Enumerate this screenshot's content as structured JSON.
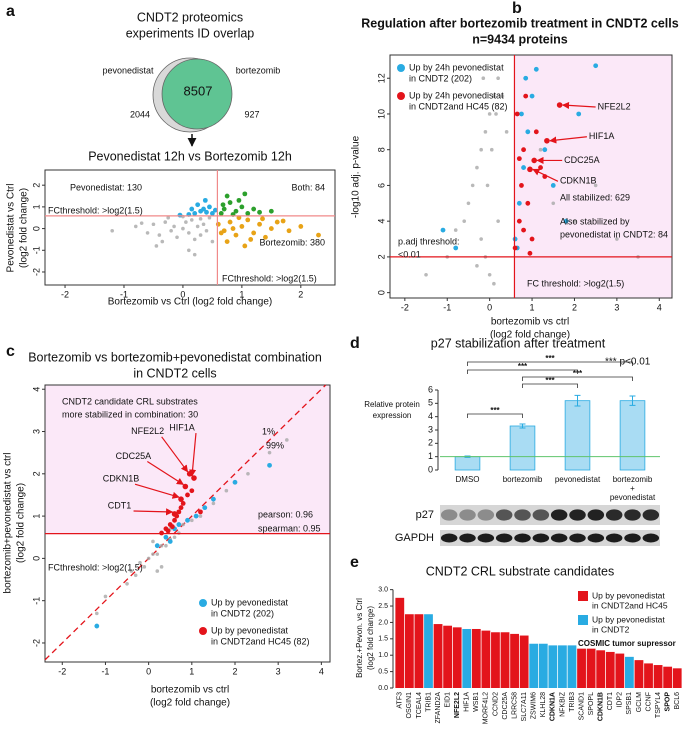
{
  "chart_data": [
    {
      "type": "venn",
      "panel": "a",
      "title": [
        "CNDT2 proteomics",
        "experiments ID overlap"
      ],
      "sets": [
        {
          "name": "pevonedistat",
          "only": 2044,
          "color": "#d9d9d9"
        },
        {
          "name": "bortezomib",
          "only": 927,
          "color": "#5fc493"
        }
      ],
      "overlap": 8507
    },
    {
      "type": "scatter",
      "title": "Pevonedistat 12h vs Bortezomib 12h",
      "x_label": "Bortezomib vs Ctrl (log2 fold change)",
      "y_label": [
        "Pevonedistat vs Ctrl",
        "(log2 fold change)"
      ],
      "xlim": [
        -2.34,
        2.58
      ],
      "ylim": [
        -2.6,
        2.7
      ],
      "xticks": [
        -2,
        -1,
        0,
        1,
        2
      ],
      "yticks": [
        -2,
        -1,
        0,
        1,
        2
      ],
      "x_threshold": 0.585,
      "y_threshold": 0.585,
      "threshold_color": "#f08a8a",
      "annotations": [
        {
          "text": "Pevonedistat: 130",
          "color": "#29abe2"
        },
        {
          "text": "Both: 84",
          "color": "#2ca02c"
        },
        {
          "text": "Bortezomib: 380",
          "color": "#e8a317"
        },
        {
          "text": "FCthreshold: >log2(1.5)",
          "color": "#e3141b"
        },
        {
          "text": "FCthreshold: >log2(1.5)",
          "color": "#e3141b"
        }
      ],
      "series": [
        {
          "color": "#a8a8a8",
          "x": [
            -1.2,
            -0.8,
            -0.6,
            -0.5,
            -0.4,
            -0.3,
            -0.2,
            -0.15,
            -0.1,
            0,
            0.05,
            0.1,
            0.15,
            0.2,
            0.25,
            0.3,
            0.35,
            0.4,
            0.45,
            0.5,
            -0.45,
            -0.25,
            0.1,
            0.3,
            -0.7,
            0.2,
            0,
            -0.35
          ],
          "y": [
            -0.1,
            0.1,
            -0.2,
            0.2,
            -0.3,
            0.3,
            -0.1,
            0.1,
            -0.4,
            0,
            0.3,
            -0.2,
            0.4,
            -0.5,
            0.1,
            -0.3,
            0.2,
            -0.1,
            0.5,
            -0.6,
            -0.8,
            0.5,
            -1.0,
            0.45,
            0.25,
            -1.2,
            0.55,
            -0.6
          ]
        },
        {
          "color": "#29abe2",
          "x": [
            0.1,
            0.2,
            0.3,
            0.35,
            0.4,
            0.45,
            0.5,
            0.25,
            0.15,
            -0.05,
            0.55,
            0.38
          ],
          "y": [
            0.65,
            0.7,
            0.8,
            0.9,
            0.75,
            1.0,
            0.7,
            1.1,
            0.9,
            0.62,
            0.85,
            1.3
          ]
        },
        {
          "color": "#2ca02c",
          "x": [
            0.65,
            0.7,
            0.8,
            0.9,
            1.0,
            1.1,
            1.2,
            0.75,
            0.95,
            1.3,
            0.68,
            1.05,
            1.5,
            0.85
          ],
          "y": [
            0.7,
            0.9,
            1.2,
            0.8,
            1.0,
            0.7,
            0.9,
            1.5,
            1.3,
            0.75,
            1.1,
            1.6,
            0.8,
            0.65
          ]
        },
        {
          "color": "#e8a317",
          "x": [
            0.6,
            0.7,
            0.8,
            0.9,
            1.0,
            1.1,
            1.2,
            1.3,
            1.4,
            1.5,
            1.6,
            1.8,
            2.0,
            2.3,
            0.75,
            0.95,
            1.15,
            1.35,
            0.65,
            0.85,
            1.05,
            1.7
          ],
          "y": [
            0.2,
            -0.1,
            0.3,
            -0.3,
            0.1,
            0.4,
            -0.2,
            0.2,
            -0.4,
            0.0,
            0.3,
            -0.1,
            0.1,
            -0.3,
            -0.6,
            0.5,
            -0.5,
            0.45,
            -0.2,
            0.0,
            -0.8,
            0.35
          ]
        }
      ]
    },
    {
      "type": "scatter",
      "panel": "b",
      "title": "Regulation after bortezomib treatment in CNDT2 cells",
      "subtitle": "n=9434 proteins",
      "x_label": [
        "bortezomib vs ctrl",
        "(log2 fold change)"
      ],
      "y_label": [
        "-log10 adj. p-value"
      ],
      "xlim": [
        -2.35,
        4.3
      ],
      "ylim": [
        -0.3,
        13.3
      ],
      "xticks": [
        -2,
        -1,
        0,
        1,
        2,
        3,
        4
      ],
      "yticks": [
        0,
        2,
        4,
        6,
        8,
        10,
        12
      ],
      "x_threshold": 0.585,
      "y_threshold": 2,
      "threshold_color": "#e3141b",
      "shade": {
        "region": "right",
        "color": "#fbe8f8"
      },
      "annotations": [
        {
          "text": "All stabilized: 629",
          "color": "#111"
        },
        {
          "text": [
            "Also stabilized by",
            "pevonedistat in CNDT2: 84"
          ],
          "color": "#111"
        },
        {
          "text": [
            "p.adj threshold:",
            "<0.01"
          ],
          "color": "#e3141b"
        },
        {
          "text": "FC threshold: >log2(1.5)",
          "color": "#e3141b"
        }
      ],
      "legend": [
        {
          "label": [
            "Up by 24h pevonedistat",
            "in CNDT2 (202)"
          ],
          "color": "#29abe2"
        },
        {
          "label": [
            "Up by 24h pevonedistat",
            "in CNDT2and HC45 (82)"
          ],
          "color": "#e3141b"
        }
      ],
      "labeled_points": [
        {
          "label": "NFE2L2",
          "x": 1.65,
          "y": 10.5
        },
        {
          "label": "HIF1A",
          "x": 1.35,
          "y": 8.5
        },
        {
          "label": "CDC25A",
          "x": 1.05,
          "y": 7.4
        },
        {
          "label": "CDKN1B",
          "x": 0.95,
          "y": 6.9
        }
      ],
      "series": [
        {
          "color": "#a8a8a8",
          "x": [
            -1.5,
            -1.0,
            -0.8,
            -0.6,
            -0.5,
            -0.4,
            -0.3,
            -0.2,
            -0.1,
            0,
            0.1,
            0.2,
            0.3,
            0.4,
            -0.3,
            -0.1,
            0,
            0.1,
            -0.2,
            0.2,
            -0.05,
            0.05,
            0.15,
            -0.15,
            1.5,
            2.0,
            2.5,
            3.0,
            1.2,
            3.5
          ],
          "y": [
            1.0,
            2.0,
            3.5,
            4,
            5,
            6,
            7,
            8,
            9,
            10,
            11,
            12,
            11,
            9,
            1.5,
            2,
            1,
            0.5,
            3,
            4,
            6,
            8,
            10,
            12,
            5,
            4,
            6,
            3,
            8,
            2
          ]
        },
        {
          "color": "#29abe2",
          "x": [
            0.6,
            0.7,
            0.8,
            0.9,
            1.0,
            1.1,
            1.3,
            1.5,
            1.8,
            2.1,
            0.65,
            0.75,
            0.85,
            2.5,
            -0.8,
            -1.1
          ],
          "y": [
            3,
            5,
            7,
            9,
            11,
            12.5,
            8,
            6,
            4,
            10,
            2.5,
            10,
            12,
            12.7,
            2.5,
            3.5
          ]
        },
        {
          "color": "#e3141b",
          "x": [
            0.6,
            0.7,
            0.75,
            0.8,
            0.9,
            1.0,
            1.1,
            1.2,
            0.65,
            0.85,
            0.95,
            1.3,
            0.7,
            0.8
          ],
          "y": [
            2.5,
            4,
            6,
            8,
            5,
            3,
            9,
            7,
            10,
            11,
            2.2,
            6.5,
            7.5,
            3.5
          ]
        }
      ]
    },
    {
      "type": "scatter",
      "panel": "c",
      "title": [
        "Bortezomib vs bortezomib+pevonedistat combination",
        "in CNDT2 cells"
      ],
      "x_label": [
        "bortezomib vs ctrl",
        "(log2 fold change)"
      ],
      "y_label": [
        "bortezomib+pevonedistat vs ctrl",
        "(log2 fold change)"
      ],
      "xlim": [
        -2.4,
        4.2
      ],
      "ylim": [
        -2.45,
        4.1
      ],
      "xticks": [
        -2,
        -1,
        0,
        1,
        2,
        3,
        4
      ],
      "yticks": [
        -2,
        -1,
        0,
        1,
        2,
        3,
        4
      ],
      "y_threshold": 0.585,
      "threshold_color": "#e3141b",
      "diagonal": true,
      "shade": {
        "region": "above",
        "color": "#fbe8f8"
      },
      "annotations": [
        {
          "text": [
            "CNDT2 candidate CRL substrates",
            "more stabilized in combination: 30"
          ],
          "color": "#111"
        },
        {
          "text": "1%",
          "color": "#111"
        },
        {
          "text": "99%",
          "color": "#111"
        },
        {
          "text": "pearson: 0.96",
          "color": "#e3141b"
        },
        {
          "text": "spearman: 0.95",
          "color": "#e3141b"
        },
        {
          "text": "FCthreshold: >log2(1.5)",
          "color": "#e3141b"
        }
      ],
      "legend": [
        {
          "label": [
            "Up by pevonedistat",
            "in CNDT2 (202)"
          ],
          "color": "#29abe2"
        },
        {
          "label": [
            "Up by pevonedistat",
            "in CNDT2and HC45 (82)"
          ],
          "color": "#e3141b"
        }
      ],
      "labeled_points": [
        {
          "label": "NFE2L2",
          "x": 0.95,
          "y": 2.0
        },
        {
          "label": "HIF1A",
          "x": 1.05,
          "y": 1.9
        },
        {
          "label": "CDC25A",
          "x": 0.85,
          "y": 1.7
        },
        {
          "label": "CDKN1B",
          "x": 0.75,
          "y": 1.4
        },
        {
          "label": "CDT1",
          "x": 0.6,
          "y": 1.05
        }
      ],
      "series": [
        {
          "color": "#a8a8a8",
          "x": [
            -1.2,
            -1.0,
            -0.5,
            -0.3,
            -0.2,
            -0.1,
            0,
            0.1,
            0.2,
            0.3,
            0.4,
            0.5,
            0.6,
            0.7,
            0.8,
            1.0,
            1.2,
            1.5,
            1.8,
            2.0,
            2.3,
            2.8,
            3.2,
            0.1,
            0.3,
            0.5,
            0.2,
            -0.4
          ],
          "y": [
            -1.3,
            -0.9,
            -0.6,
            -0.4,
            -0.1,
            -0.2,
            0,
            0.1,
            0.1,
            0.3,
            0.3,
            0.45,
            0.5,
            0.6,
            0.8,
            0.9,
            1.0,
            1.3,
            1.6,
            1.8,
            2.0,
            2.5,
            2.8,
            0.4,
            -0.2,
            0.7,
            -0.3,
            -0.3
          ]
        },
        {
          "color": "#29abe2",
          "x": [
            0.2,
            0.4,
            0.5,
            0.7,
            0.9,
            1.1,
            1.5,
            2.0,
            2.8,
            -1.2,
            0.6,
            1.3
          ],
          "y": [
            0.3,
            0.5,
            0.4,
            0.8,
            0.9,
            1.0,
            1.4,
            1.8,
            2.2,
            -1.6,
            0.7,
            1.2
          ]
        },
        {
          "color": "#e3141b",
          "x": [
            0.3,
            0.4,
            0.5,
            0.6,
            0.7,
            0.8,
            0.9,
            1.0,
            0.45,
            0.55,
            0.65,
            0.75,
            1.2
          ],
          "y": [
            0.6,
            0.7,
            0.8,
            0.9,
            1.1,
            1.3,
            1.5,
            1.6,
            0.65,
            0.75,
            1.0,
            1.2,
            1.1
          ]
        }
      ]
    },
    {
      "type": "bar",
      "panel": "d",
      "title": "p27 stabilization after treatment",
      "y_label": [
        "Relative protein",
        "expression"
      ],
      "categories": [
        "DMSO",
        "bortezomib",
        "pevonedistat",
        [
          "bortezomib",
          "+",
          "pevonedistat"
        ]
      ],
      "values": [
        1,
        3.3,
        5.2,
        5.2
      ],
      "errors": [
        0.05,
        0.15,
        0.4,
        0.35
      ],
      "color": "#a9dcf3",
      "edge": "#29abe2",
      "ylim": [
        0,
        6
      ],
      "yticks": [
        0,
        1,
        2,
        3,
        4,
        5,
        6
      ],
      "reference_line": 1,
      "reference_color": "#5fc46b",
      "significance": [
        {
          "from": 0,
          "to": 1,
          "label": "***"
        },
        {
          "from": 1,
          "to": 2,
          "label": "***"
        },
        {
          "from": 1,
          "to": 3,
          "label": "***"
        },
        {
          "from": 0,
          "to": 2,
          "label": "***"
        },
        {
          "from": 0,
          "to": 3,
          "label": "***"
        }
      ],
      "note": "*** p<0.01",
      "blot": [
        "p27",
        "GAPDH"
      ]
    },
    {
      "type": "bar",
      "panel": "e",
      "title": "CNDT2 CRL substrate candidates",
      "y_label": [
        "Bortez.+Pevon. vs Ctrl",
        "(log2 fold change)"
      ],
      "categories": [
        "ATF3",
        "OSGIN1",
        "TCEAL4",
        "TRIB1",
        "ZFAND2A",
        "EID1",
        "NFE2L2",
        "HIF1A",
        "WSB1",
        "MORF4L2",
        "CCND2",
        "CDC25A",
        "LRRC58",
        "SLC7A11",
        "ZSWIM6",
        "KLHL28",
        "CDKN1A",
        "NFKBIZ",
        "TRIB3",
        "SCAND1",
        "SPOPL",
        "CDKN1B",
        "CDT1",
        "IDP2",
        "SPSB1",
        "GCLM",
        "CCNF",
        "TSPYL4",
        "SPOP",
        "BCL6"
      ],
      "values": [
        2.75,
        2.25,
        2.25,
        2.25,
        1.95,
        1.9,
        1.85,
        1.8,
        1.8,
        1.75,
        1.7,
        1.7,
        1.65,
        1.6,
        1.35,
        1.35,
        1.3,
        1.3,
        1.3,
        1.2,
        1.2,
        1.15,
        1.1,
        1.05,
        0.95,
        0.85,
        0.75,
        0.7,
        0.65,
        0.6
      ],
      "colors": [
        "#e3141b",
        "#e3141b",
        "#e3141b",
        "#29abe2",
        "#e3141b",
        "#e3141b",
        "#e3141b",
        "#29abe2",
        "#e3141b",
        "#e3141b",
        "#e3141b",
        "#e3141b",
        "#e3141b",
        "#e3141b",
        "#29abe2",
        "#29abe2",
        "#29abe2",
        "#29abe2",
        "#29abe2",
        "#e3141b",
        "#e3141b",
        "#e3141b",
        "#e3141b",
        "#e3141b",
        "#29abe2",
        "#e3141b",
        "#e3141b",
        "#e3141b",
        "#e3141b",
        "#e3141b"
      ],
      "label_colors": [
        "#111",
        "#111",
        "#111",
        "#111",
        "#111",
        "#111",
        "#1f9a3a",
        "#111",
        "#111",
        "#111",
        "#111",
        "#111",
        "#111",
        "#111",
        "#111",
        "#111",
        "#1f9a3a",
        "#111",
        "#111",
        "#111",
        "#111",
        "#1f9a3a",
        "#111",
        "#111",
        "#111",
        "#111",
        "#111",
        "#111",
        "#1f9a3a",
        "#111"
      ],
      "ylim": [
        0,
        3.05
      ],
      "yticks": [
        {
          "value": 0,
          "label": "0.0"
        },
        {
          "value": 0.5,
          "label": "0.5"
        },
        {
          "value": 1,
          "label": "1.0"
        },
        {
          "value": 1.5,
          "label": "1.5"
        },
        {
          "value": 2,
          "label": "2.0"
        },
        {
          "value": 2.5,
          "label": "2.5"
        },
        {
          "value": 3,
          "label": "3.0"
        }
      ],
      "legend": [
        {
          "label": [
            "Up by pevonedistat",
            "in CNDT2and HC45"
          ],
          "color": "#e3141b",
          "swatch": true
        },
        {
          "label": [
            "Up by pevonedistat",
            "in CNDT2"
          ],
          "color": "#29abe2",
          "swatch": true
        },
        {
          "label": [
            "COSMIC tumor supressor"
          ],
          "color": "#1f9a3a",
          "swatch": false
        }
      ]
    }
  ]
}
